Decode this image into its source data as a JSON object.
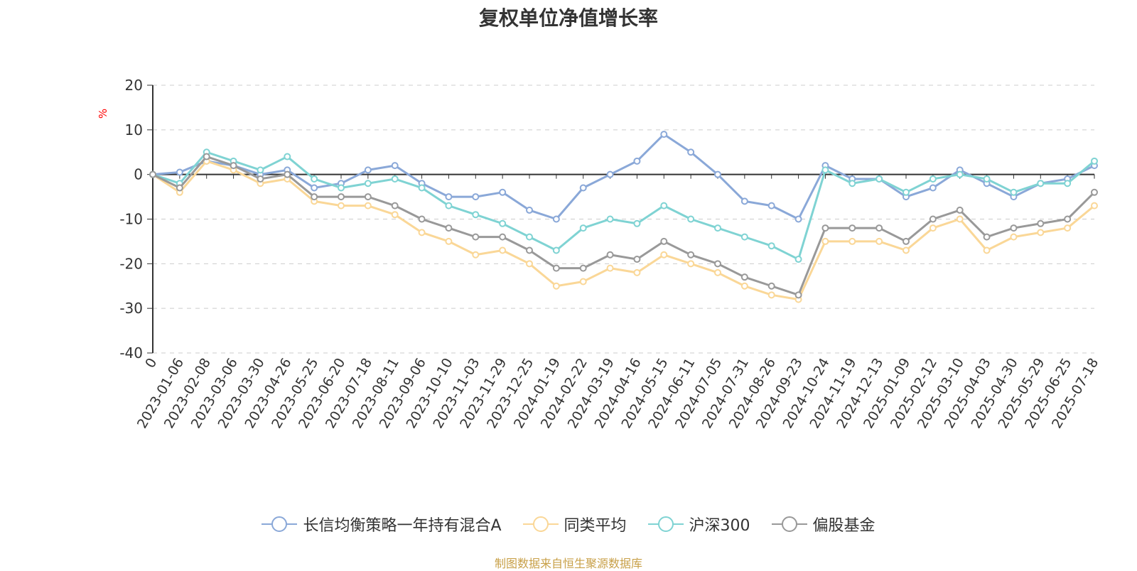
{
  "chart_data": {
    "type": "line",
    "title": "复权单位净值增长率",
    "ylabel": "%",
    "ylim": [
      -40,
      20
    ],
    "yticks": [
      "20",
      "10",
      "0",
      "-10",
      "-20",
      "-30",
      "-40"
    ],
    "grid": "dashed horizontal",
    "legend_position": "bottom",
    "x": [
      "0",
      "2023-01-06",
      "2023-02-08",
      "2023-03-06",
      "2023-03-30",
      "2023-04-26",
      "2023-05-25",
      "2023-06-20",
      "2023-07-18",
      "2023-08-11",
      "2023-09-06",
      "2023-10-10",
      "2023-11-03",
      "2023-11-29",
      "2023-12-25",
      "2024-01-19",
      "2024-02-22",
      "2024-03-19",
      "2024-04-16",
      "2024-05-15",
      "2024-06-11",
      "2024-07-05",
      "2024-07-31",
      "2024-08-26",
      "2024-09-23",
      "2024-10-24",
      "2024-11-19",
      "2024-12-13",
      "2025-01-09",
      "2025-02-12",
      "2025-03-10",
      "2025-04-03",
      "2025-04-30",
      "2025-05-29",
      "2025-06-25",
      "2025-07-18"
    ],
    "series": [
      {
        "name": "长信均衡策略一年持有混合A",
        "color": "#8aa8d8",
        "values": [
          0,
          0.5,
          3,
          2,
          0,
          1,
          -3,
          -2,
          1,
          2,
          -2,
          -5,
          -5,
          -4,
          -8,
          -10,
          -3,
          0,
          3,
          9,
          5,
          0,
          -6,
          -7,
          -10,
          2,
          -1,
          -1,
          -5,
          -3,
          1,
          -2,
          -5,
          -2,
          -1,
          2
        ]
      },
      {
        "name": "同类平均",
        "color": "#fad797",
        "values": [
          0,
          -4,
          3,
          1,
          -2,
          -1,
          -6,
          -7,
          -7,
          -9,
          -13,
          -15,
          -18,
          -17,
          -20,
          -25,
          -24,
          -21,
          -22,
          -18,
          -20,
          -22,
          -25,
          -27,
          -28,
          -15,
          -15,
          -15,
          -17,
          -12,
          -10,
          -17,
          -14,
          -13,
          -12,
          -7
        ]
      },
      {
        "name": "沪深300",
        "color": "#7fd3d3",
        "values": [
          0,
          -2,
          5,
          3,
          1,
          4,
          -1,
          -3,
          -2,
          -1,
          -3,
          -7,
          -9,
          -11,
          -14,
          -17,
          -12,
          -10,
          -11,
          -7,
          -10,
          -12,
          -14,
          -16,
          -19,
          1,
          -2,
          -1,
          -4,
          -1,
          0,
          -1,
          -4,
          -2,
          -2,
          3
        ]
      },
      {
        "name": "偏股基金",
        "color": "#999999",
        "values": [
          0,
          -3,
          4,
          2,
          -1,
          0,
          -5,
          -5,
          -5,
          -7,
          -10,
          -12,
          -14,
          -14,
          -17,
          -21,
          -21,
          -18,
          -19,
          -15,
          -18,
          -20,
          -23,
          -25,
          -27,
          -12,
          -12,
          -12,
          -15,
          -10,
          -8,
          -14,
          -12,
          -11,
          -10,
          -4
        ]
      }
    ]
  },
  "source_note": "制图数据来自恒生聚源数据库"
}
